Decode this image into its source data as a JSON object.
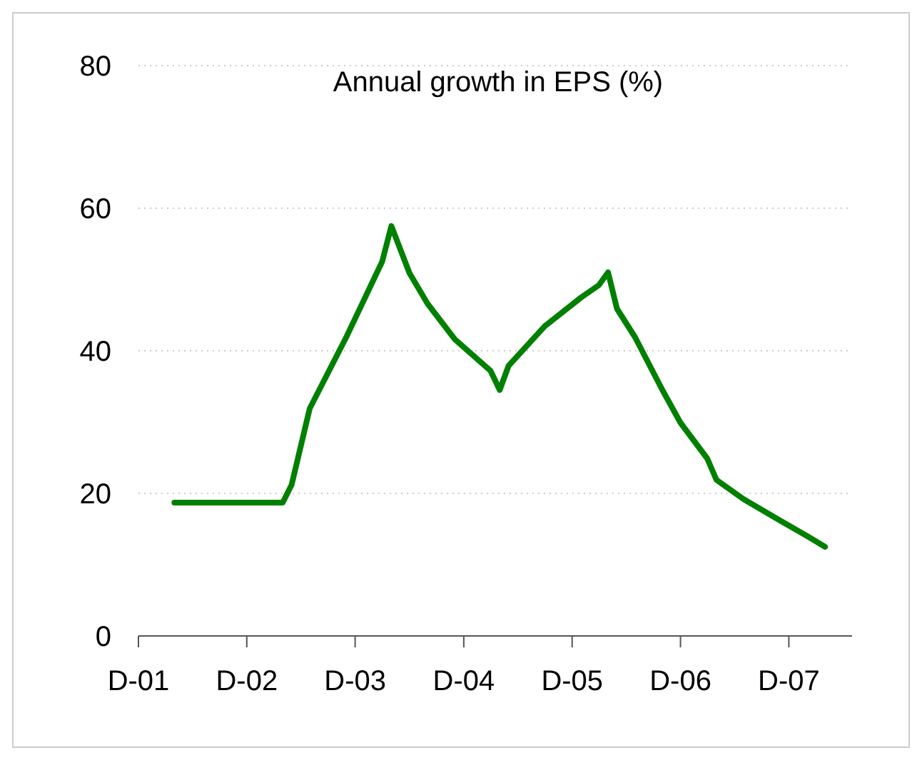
{
  "chart_data": {
    "type": "line",
    "title": "Annual growth in EPS  (%)",
    "x": [
      "2002-04",
      "2003-04",
      "2003-05",
      "2003-07",
      "2003-11",
      "2004-03",
      "2004-04",
      "2004-06",
      "2004-08",
      "2004-11",
      "2005-03",
      "2005-04",
      "2005-05",
      "2005-09",
      "2006-01",
      "2006-03",
      "2006-04",
      "2006-05",
      "2006-07",
      "2006-10",
      "2006-12",
      "2007-03",
      "2007-04",
      "2007-07",
      "2007-11",
      "2008-02",
      "2008-04"
    ],
    "series": [
      {
        "color": "#008000",
        "values": [
          18.7,
          18.7,
          21.2,
          31.9,
          41.9,
          52.5,
          57.5,
          50.9,
          46.6,
          41.6,
          37.2,
          34.5,
          37.9,
          43.5,
          47.5,
          49.2,
          51,
          45.9,
          41.9,
          34.5,
          29.9,
          24.9,
          21.9,
          19.2,
          16.2,
          14,
          12.5
        ]
      }
    ],
    "xlim": [
      "2001-12",
      "2008-07"
    ],
    "xticks": [
      {
        "value": "2001-12",
        "label": "D-01"
      },
      {
        "value": "2002-12",
        "label": "D-02"
      },
      {
        "value": "2003-12",
        "label": "D-03"
      },
      {
        "value": "2004-12",
        "label": "D-04"
      },
      {
        "value": "2005-12",
        "label": "D-05"
      },
      {
        "value": "2006-12",
        "label": "D-06"
      },
      {
        "value": "2007-12",
        "label": "D-07"
      }
    ],
    "ylim": [
      0,
      80
    ],
    "yticks": [
      0,
      20,
      40,
      60,
      80
    ],
    "grid": "y",
    "marker": "none",
    "line_style": "solid"
  }
}
